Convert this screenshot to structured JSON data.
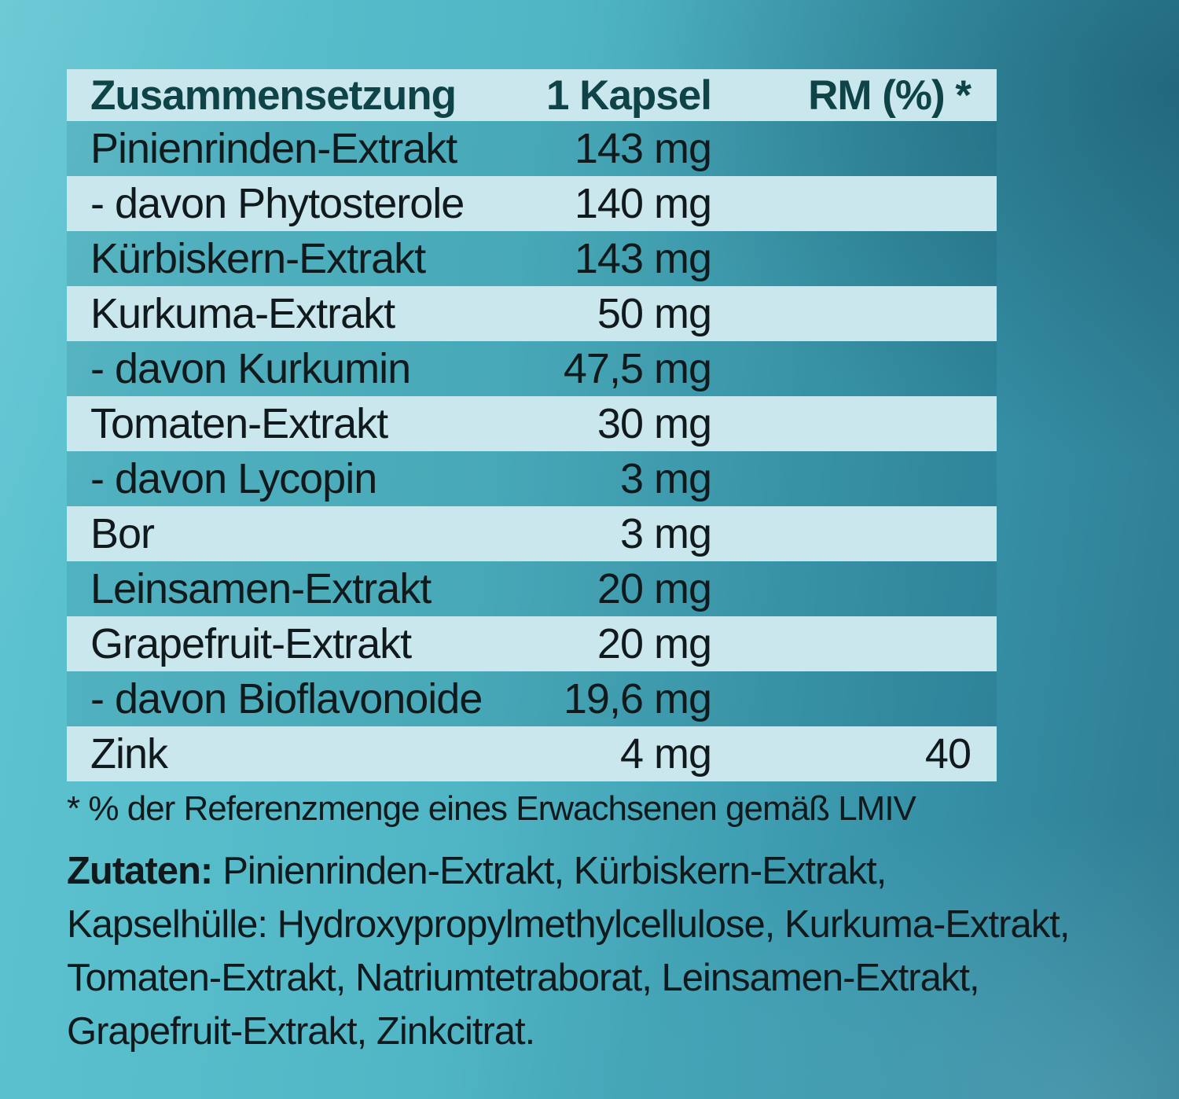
{
  "table": {
    "header": {
      "composition": "Zusammensetzung",
      "amount": "1 Kapsel",
      "rm": "RM (%) *"
    },
    "rows": [
      {
        "name": "Pinienrinden-Extrakt",
        "amount": "143 mg",
        "rm": ""
      },
      {
        "name": "- davon Phytosterole",
        "amount": "140 mg",
        "rm": ""
      },
      {
        "name": "Kürbiskern-Extrakt",
        "amount": "143 mg",
        "rm": ""
      },
      {
        "name": "Kurkuma-Extrakt",
        "amount": "50 mg",
        "rm": ""
      },
      {
        "name": "- davon Kurkumin",
        "amount": "47,5 mg",
        "rm": ""
      },
      {
        "name": "Tomaten-Extrakt",
        "amount": "30 mg",
        "rm": ""
      },
      {
        "name": "- davon Lycopin",
        "amount": "3 mg",
        "rm": ""
      },
      {
        "name": "Bor",
        "amount": "3 mg",
        "rm": ""
      },
      {
        "name": "Leinsamen-Extrakt",
        "amount": "20 mg",
        "rm": ""
      },
      {
        "name": "Grapefruit-Extrakt",
        "amount": "20 mg",
        "rm": ""
      },
      {
        "name": "- davon Bioflavonoide",
        "amount": "19,6 mg",
        "rm": ""
      },
      {
        "name": "Zink",
        "amount": "4 mg",
        "rm": "40"
      }
    ]
  },
  "footnote": "* % der Referenzmenge eines Erwachsenen gemäß LMIV",
  "ingredients": {
    "label": "Zutaten:",
    "lines": [
      "Pinienrinden-Extrakt, Kürbiskern-Extrakt,",
      "Kapselhülle: Hydroxypropylmethylcellulose, Kurkuma-Extrakt,",
      "Tomaten-Extrakt, Natriumtetraborat, Leinsamen-Extrakt,",
      "Grapefruit-Extrakt, Zinkcitrat."
    ]
  },
  "colors": {
    "background_light": "#5ec4d1",
    "background_dark": "#2e7b92",
    "row_light": "#c9e7ed",
    "header_text": "#0e4347",
    "body_text": "#10191c"
  }
}
